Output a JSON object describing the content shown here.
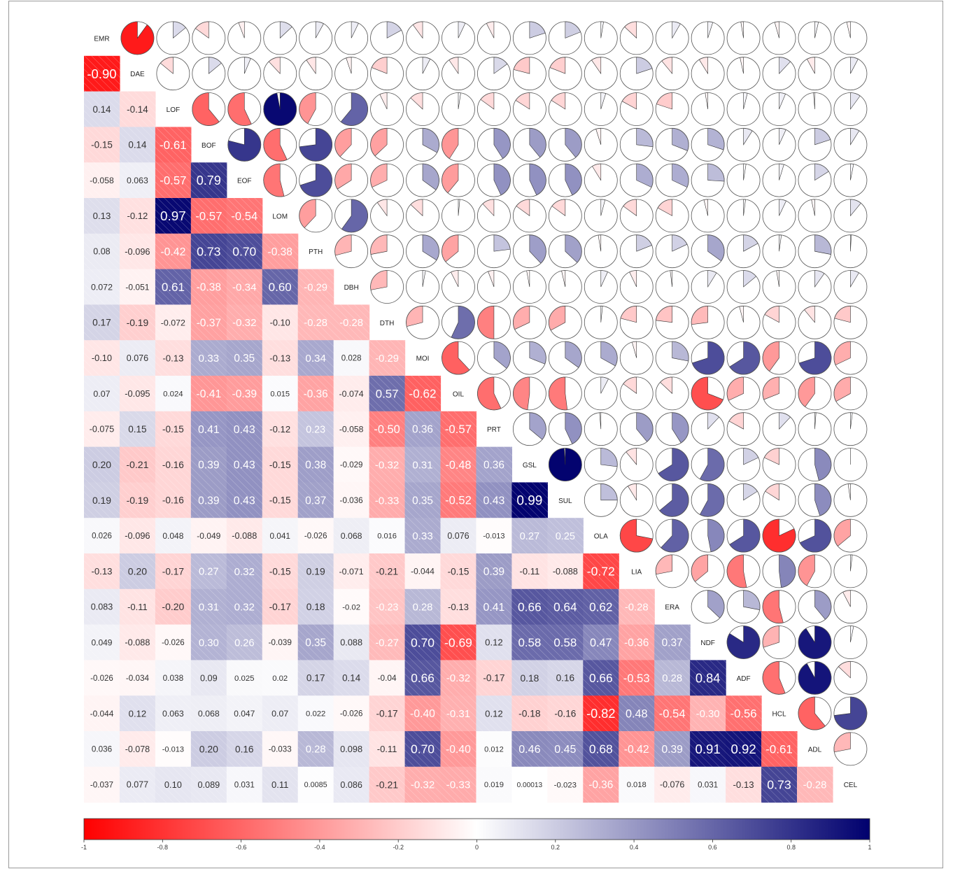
{
  "chart_data": {
    "type": "heatmap",
    "title": "",
    "variables": [
      "EMR",
      "DAE",
      "LOF",
      "BOF",
      "EOF",
      "LOM",
      "PTH",
      "DBH",
      "DTH",
      "MOI",
      "OIL",
      "PRT",
      "GSL",
      "SUL",
      "OLA",
      "LIA",
      "ERA",
      "NDF",
      "ADF",
      "HCL",
      "ADL",
      "CEL"
    ],
    "lower_rows": [
      [],
      [
        "-0.90"
      ],
      [
        "0.14",
        "-0.14"
      ],
      [
        "-0.15",
        "0.14",
        "-0.61"
      ],
      [
        "-0.058",
        "0.063",
        "-0.57",
        "0.79"
      ],
      [
        "0.13",
        "-0.12",
        "0.97",
        "-0.57",
        "-0.54"
      ],
      [
        "0.08",
        "-0.096",
        "-0.42",
        "0.73",
        "0.70",
        "-0.38"
      ],
      [
        "0.072",
        "-0.051",
        "0.61",
        "-0.38",
        "-0.34",
        "0.60",
        "-0.29"
      ],
      [
        "0.17",
        "-0.19",
        "-0.072",
        "-0.37",
        "-0.32",
        "-0.10",
        "-0.28",
        "-0.28"
      ],
      [
        "-0.10",
        "0.076",
        "-0.13",
        "0.33",
        "0.35",
        "-0.13",
        "0.34",
        "0.028",
        "-0.29"
      ],
      [
        "0.07",
        "-0.095",
        "0.024",
        "-0.41",
        "-0.39",
        "0.015",
        "-0.36",
        "-0.074",
        "0.57",
        "-0.62"
      ],
      [
        "-0.075",
        "0.15",
        "-0.15",
        "0.41",
        "0.43",
        "-0.12",
        "0.23",
        "-0.058",
        "-0.50",
        "0.36",
        "-0.57"
      ],
      [
        "0.20",
        "-0.21",
        "-0.16",
        "0.39",
        "0.43",
        "-0.15",
        "0.38",
        "-0.029",
        "-0.32",
        "0.31",
        "-0.48",
        "0.36"
      ],
      [
        "0.19",
        "-0.19",
        "-0.16",
        "0.39",
        "0.43",
        "-0.15",
        "0.37",
        "-0.036",
        "-0.33",
        "0.35",
        "-0.52",
        "0.43",
        "0.99"
      ],
      [
        "0.026",
        "-0.096",
        "0.048",
        "-0.049",
        "-0.088",
        "0.041",
        "-0.026",
        "0.068",
        "0.016",
        "0.33",
        "0.076",
        "-0.013",
        "0.27",
        "0.25"
      ],
      [
        "-0.13",
        "0.20",
        "-0.17",
        "0.27",
        "0.32",
        "-0.15",
        "0.19",
        "-0.071",
        "-0.21",
        "-0.044",
        "-0.15",
        "0.39",
        "-0.11",
        "-0.088",
        "-0.72"
      ],
      [
        "0.083",
        "-0.11",
        "-0.20",
        "0.31",
        "0.32",
        "-0.17",
        "0.18",
        "-0.02",
        "-0.23",
        "0.28",
        "-0.13",
        "0.41",
        "0.66",
        "0.64",
        "0.62",
        "-0.28"
      ],
      [
        "0.049",
        "-0.088",
        "-0.026",
        "0.30",
        "0.26",
        "-0.039",
        "0.35",
        "0.088",
        "-0.27",
        "0.70",
        "-0.69",
        "0.12",
        "0.58",
        "0.58",
        "0.47",
        "-0.36",
        "0.37"
      ],
      [
        "-0.026",
        "-0.034",
        "0.038",
        "0.09",
        "0.025",
        "0.02",
        "0.17",
        "0.14",
        "-0.04",
        "0.66",
        "-0.32",
        "-0.17",
        "0.18",
        "0.16",
        "0.66",
        "-0.53",
        "0.28",
        "0.84"
      ],
      [
        "-0.044",
        "0.12",
        "0.063",
        "0.068",
        "0.047",
        "0.07",
        "0.022",
        "-0.026",
        "-0.17",
        "-0.40",
        "-0.31",
        "0.12",
        "-0.18",
        "-0.16",
        "-0.82",
        "0.48",
        "-0.54",
        "-0.30",
        "-0.56"
      ],
      [
        "0.036",
        "-0.078",
        "-0.013",
        "0.20",
        "0.16",
        "-0.033",
        "0.28",
        "0.098",
        "-0.11",
        "0.70",
        "-0.40",
        "0.012",
        "0.46",
        "0.45",
        "0.68",
        "-0.42",
        "0.39",
        "0.91",
        "0.92",
        "-0.61"
      ],
      [
        "-0.037",
        "0.077",
        "0.10",
        "0.089",
        "0.031",
        "0.11",
        "0.0085",
        "0.086",
        "-0.21",
        "-0.32",
        "-0.33",
        "0.019",
        "0.00013",
        "-0.023",
        "-0.36",
        "0.018",
        "-0.076",
        "0.031",
        "-0.13",
        "0.73",
        "-0.28"
      ]
    ],
    "upper_display": "pie",
    "colorbar": {
      "min": -1,
      "max": 1,
      "ticks": [
        "-1",
        "-0.8",
        "-0.6",
        "-0.4",
        "-0.2",
        "0",
        "0.2",
        "0.4",
        "0.6",
        "0.8",
        "1"
      ],
      "colors": [
        "#ff0000",
        "#ffffff",
        "#00006e"
      ]
    },
    "colors": {
      "negative": "#ff0000",
      "neutral": "#ffffff",
      "positive": "#00006e"
    }
  }
}
